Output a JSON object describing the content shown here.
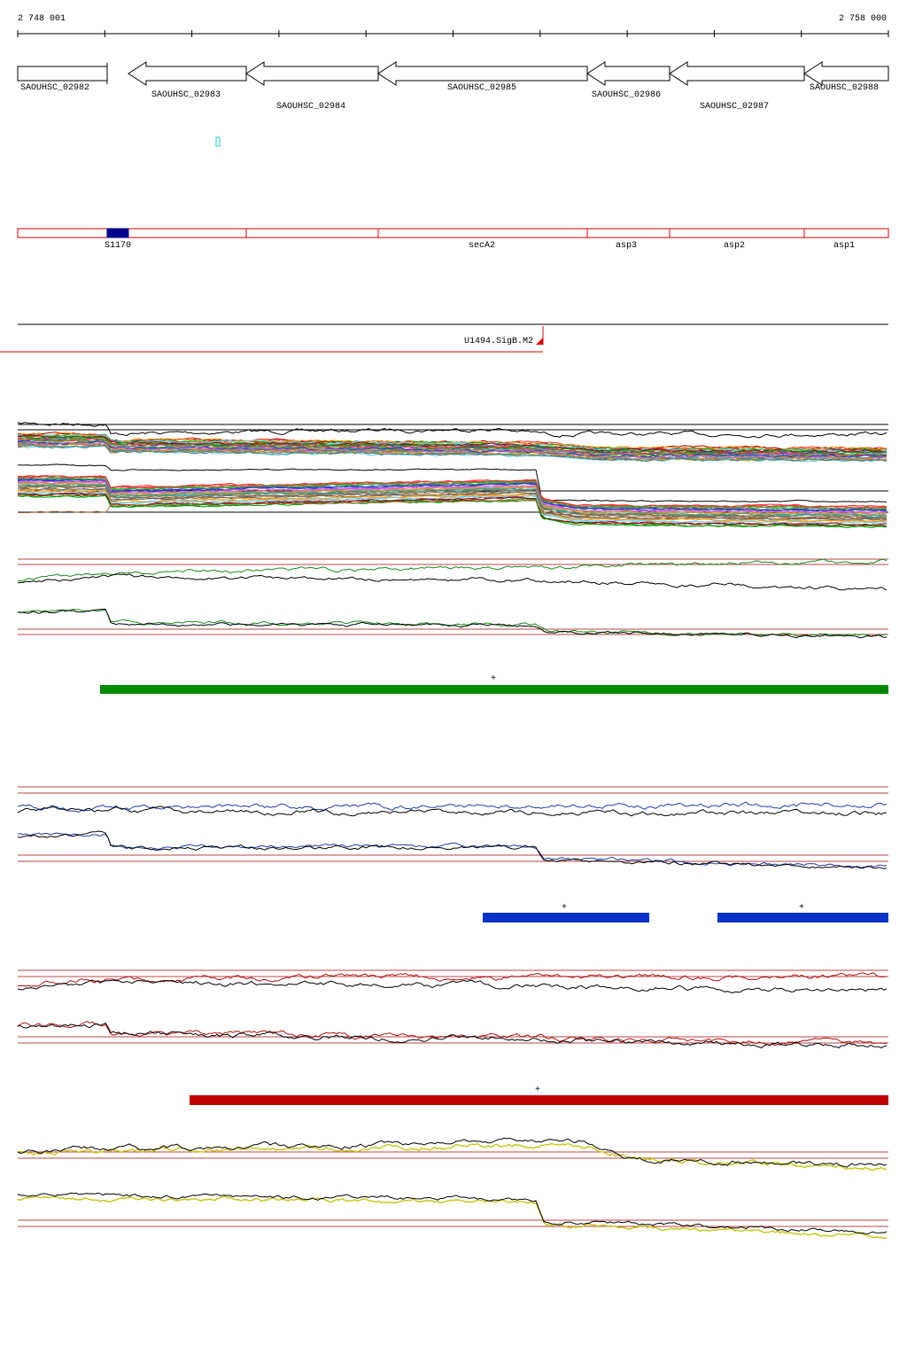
{
  "ruler": {
    "start": "2 748 001",
    "end": "2 758 000"
  },
  "genes": [
    {
      "label": "SAOUHSC_02982"
    },
    {
      "label": "SAOUHSC_02983"
    },
    {
      "label": "SAOUHSC_02984"
    },
    {
      "label": "SAOUHSC_02985"
    },
    {
      "label": "SAOUHSC_02986"
    },
    {
      "label": "SAOUHSC_02987"
    },
    {
      "label": "SAOUHSC_02988"
    }
  ],
  "features": [
    {
      "label": "S1170"
    },
    {
      "label": "secA2"
    },
    {
      "label": "asp3"
    },
    {
      "label": "asp2"
    },
    {
      "label": "asp1"
    }
  ],
  "promoter": {
    "label": "U1494.SigB.M2"
  },
  "tracks": [
    {
      "strands": [
        "+"
      ]
    },
    {
      "strands": [
        "+",
        "+"
      ]
    },
    {
      "strands": [
        "+"
      ]
    }
  ]
}
